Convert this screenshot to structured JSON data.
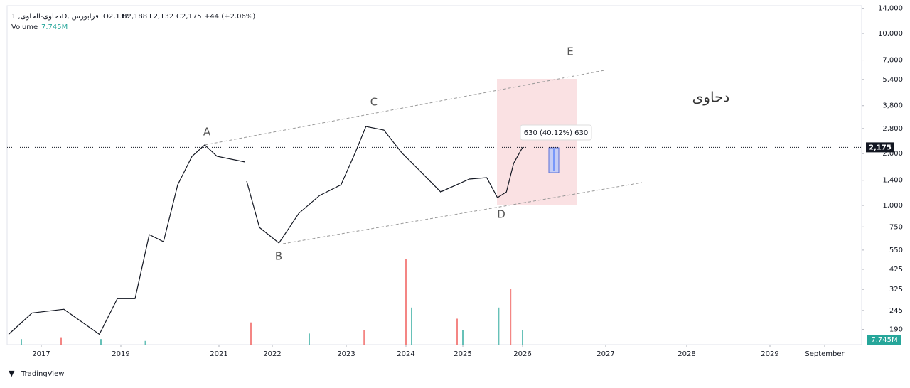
{
  "chart_data": {
    "type": "line",
    "symbol": "دحاوی-الحاوی, 1D, فرابورس",
    "ohlc": [
      "O2,132",
      "H2,188",
      "L2,132",
      "C2,175",
      "+44 (+2.06%)"
    ],
    "volume_title": "Volume",
    "watermark": "دحاوی",
    "annotations": [
      "A",
      "B",
      "C",
      "D",
      "E"
    ],
    "measure_label": "630 (40.12%) 630",
    "last_price": {
      "value": 2175,
      "label": "2,175"
    },
    "log_scale": true,
    "color": "#131722",
    "x": [
      2016.18,
      2016.77,
      2017.57,
      2018.46,
      2018.91,
      2019.29,
      2019.58,
      2019.87,
      2020.16,
      2020.45,
      2020.71,
      2020.96,
      2021.49,
      2021.505,
      2021.52,
      2021.76,
      2022.09,
      2022.36,
      2022.64,
      2022.93,
      2023.15,
      2023.33,
      2023.63,
      2023.93,
      2024.24,
      2024.61,
      2025.11,
      2025.4,
      2025.58,
      2025.73,
      2025.85,
      2026.0
    ],
    "values": [
      178,
      237,
      249,
      178,
      287,
      287,
      677,
      615,
      1318,
      1929,
      2248,
      1929,
      1788,
      null,
      1383,
      744,
      604,
      900,
      1142,
      1318,
      2024,
      2878,
      2744,
      2024,
      1595,
      1198,
      1423,
      1450,
      1110,
      1198,
      1754,
      2175
    ],
    "volume": {
      "x": [
        2016.5,
        2017.5,
        2018.5,
        2019.5,
        2021.6,
        2022.5,
        2023.3,
        2024.0,
        2024.1,
        2024.9,
        2025.0,
        2025.6,
        2025.8,
        2026.0
      ],
      "values": [
        3,
        4,
        3,
        2,
        12,
        6,
        8,
        46,
        20,
        14,
        8,
        20,
        30,
        7.745
      ],
      "colors": [
        "#26a69a",
        "#ef5350",
        "#26a69a",
        "#26a69a",
        "#ef5350",
        "#26a69a",
        "#ef5350",
        "#ef5350",
        "#26a69a",
        "#ef5350",
        "#26a69a",
        "#26a69a",
        "#ef5350",
        "#26a69a"
      ],
      "value_labels": [
        null,
        null,
        null,
        null,
        null,
        null,
        null,
        null,
        null,
        null,
        null,
        null,
        null,
        "7.745M"
      ]
    },
    "ylim": [
      155,
      14500
    ],
    "yticks": [
      190,
      245,
      325,
      425,
      550,
      750,
      {
        "value": 1000,
        "label": "1,000"
      },
      {
        "value": 1400,
        "label": "1,400"
      },
      {
        "value": 2000,
        "label": "2,000"
      },
      {
        "value": 2800,
        "label": "2,800"
      },
      {
        "value": 3800,
        "label": "3,800"
      },
      {
        "value": 5400,
        "label": "5,400"
      },
      {
        "value": 7000,
        "label": "7,000"
      },
      {
        "value": 10000,
        "label": "10,000"
      },
      {
        "value": 14000,
        "label": "14,000"
      }
    ],
    "xticks": [
      2017,
      2019,
      2021,
      2022,
      2023,
      2024,
      2025,
      2026,
      2027,
      2028,
      2029,
      {
        "value": 2029.66,
        "label": "September"
      }
    ],
    "footer": "TradingView"
  }
}
